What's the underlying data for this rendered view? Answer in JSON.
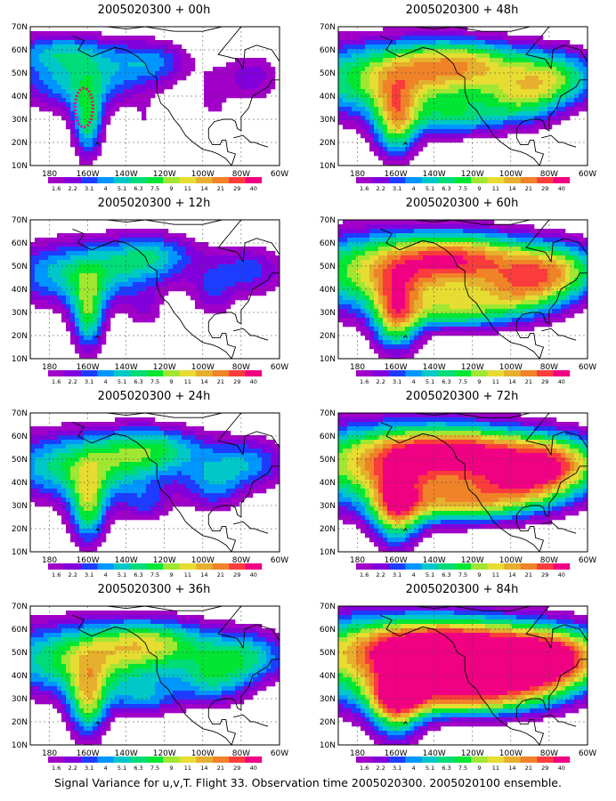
{
  "caption": "Signal Variance for u,v,T. Flight 33. Observation time 2005020300. 2005020100 ensemble.",
  "chart_data": {
    "type": "heatmap",
    "x_ticks": [
      "180",
      "160W",
      "140W",
      "120W",
      "100W",
      "80W",
      "60W"
    ],
    "y_ticks": [
      "10N",
      "20N",
      "30N",
      "40N",
      "50N",
      "60N",
      "70N"
    ],
    "lon_range": [
      -190,
      -60
    ],
    "lat_range": [
      10,
      70
    ],
    "colorbar_levels": [
      "1.6",
      "2.2",
      "3.1",
      "4",
      "5.1",
      "6.3",
      "7.5",
      "9",
      "11",
      "14",
      "21",
      "29",
      "40"
    ],
    "colorbar_colors": [
      "#a000c8",
      "#8200dc",
      "#1e3cff",
      "#0096ff",
      "#00c8c8",
      "#00dc78",
      "#00e632",
      "#a0e632",
      "#e6dc32",
      "#e6af2d",
      "#f08228",
      "#fa3c3c",
      "#f00082"
    ],
    "panels": [
      {
        "title": "2005020300 + 00h",
        "lead": 0
      },
      {
        "title": "2005020300 + 48h",
        "lead": 48
      },
      {
        "title": "2005020300 + 12h",
        "lead": 12
      },
      {
        "title": "2005020300 + 60h",
        "lead": 60
      },
      {
        "title": "2005020300 + 24h",
        "lead": 24
      },
      {
        "title": "2005020300 + 72h",
        "lead": 72
      },
      {
        "title": "2005020300 + 36h",
        "lead": 36
      },
      {
        "title": "2005020300 + 84h",
        "lead": 84
      }
    ]
  }
}
